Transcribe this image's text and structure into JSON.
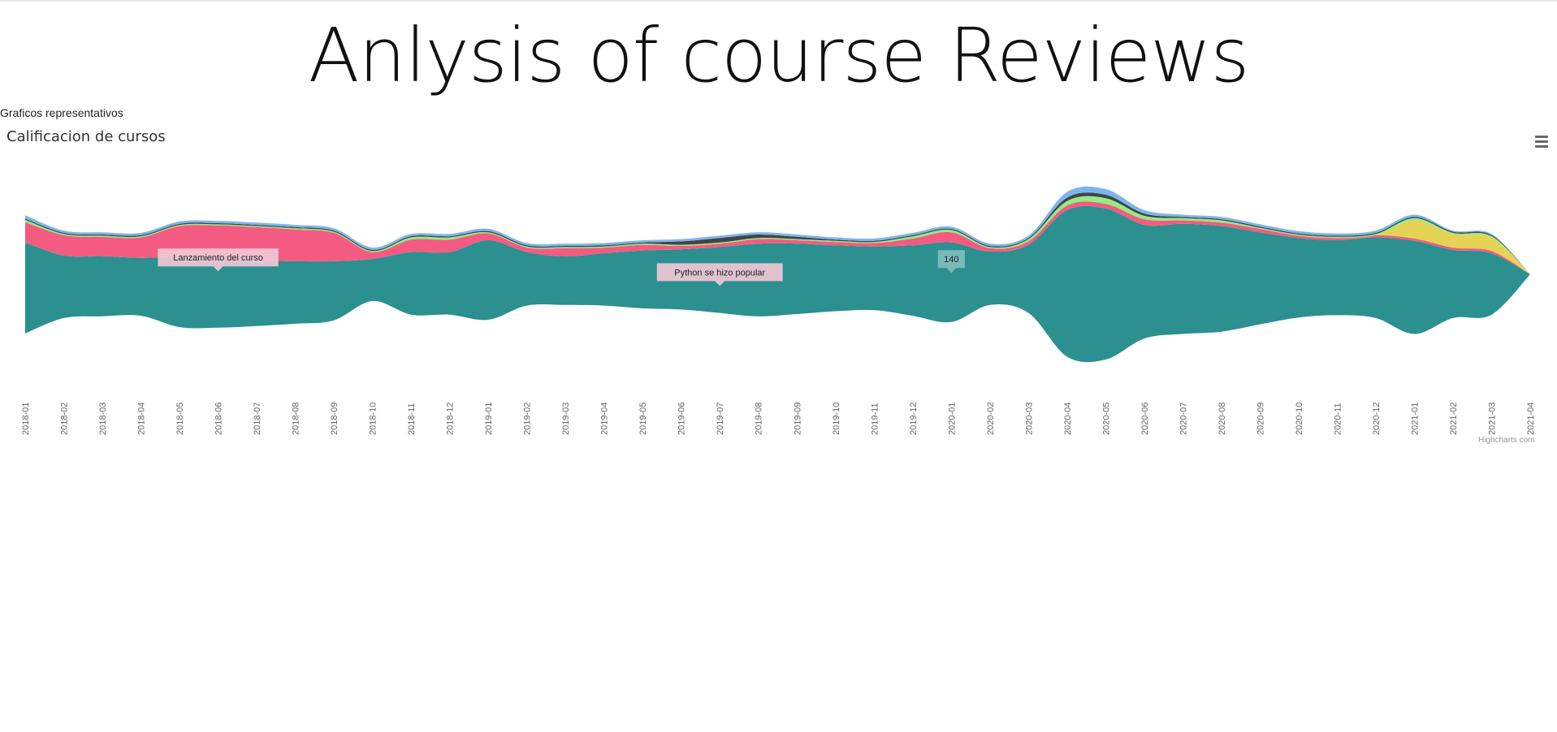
{
  "page": {
    "title": "Anlysis of course Reviews",
    "subtitle": "Graficos representativos"
  },
  "chart_menu_icon": "hamburger-menu-icon",
  "credit": "Highcharts.com",
  "chart_data": {
    "type": "area",
    "title": "Calificacion de cursos",
    "xlabel": "",
    "ylabel": "",
    "stacking": "streamgraph",
    "categories": [
      "2018-01",
      "2018-02",
      "2018-03",
      "2018-04",
      "2018-05",
      "2018-06",
      "2018-07",
      "2018-08",
      "2018-09",
      "2018-10",
      "2018-11",
      "2018-12",
      "2019-01",
      "2019-02",
      "2019-03",
      "2019-04",
      "2019-05",
      "2019-06",
      "2019-07",
      "2019-08",
      "2019-09",
      "2019-10",
      "2019-11",
      "2019-12",
      "2020-01",
      "2020-02",
      "2020-03",
      "2020-04",
      "2020-05",
      "2020-06",
      "2020-07",
      "2020-08",
      "2020-09",
      "2020-10",
      "2020-11",
      "2020-12",
      "2021-01",
      "2021-02",
      "2021-03",
      "2021-04"
    ],
    "series": [
      {
        "color": "#2b908f",
        "values": [
          80,
          55,
          53,
          51,
          62,
          62,
          58,
          55,
          52,
          37,
          55,
          55,
          70,
          47,
          43,
          46,
          51,
          53,
          58,
          64,
          62,
          58,
          56,
          62,
          70,
          47,
          60,
          129,
          133,
          100,
          97,
          93,
          81,
          70,
          66,
          71,
          82,
          60,
          54,
          0
        ]
      },
      {
        "color": "#f45b82",
        "values": [
          18,
          18,
          17,
          18,
          27,
          28,
          29,
          28,
          25,
          6,
          11,
          11,
          6,
          4,
          7,
          5,
          5,
          3,
          3,
          4,
          3,
          3,
          3,
          6,
          9,
          3,
          3,
          4,
          4,
          5,
          3,
          3,
          3,
          2,
          2,
          2,
          2,
          2,
          2,
          0
        ]
      },
      {
        "color": "#e4d354",
        "values": [
          0,
          0,
          0,
          0,
          0,
          0,
          0,
          0,
          0,
          0,
          0,
          0,
          0,
          0,
          0,
          0,
          0,
          0,
          0,
          0,
          0,
          0,
          0,
          0,
          0,
          0,
          0,
          0,
          0,
          0,
          0,
          0,
          0,
          0,
          0,
          0,
          16,
          12,
          12,
          0
        ]
      },
      {
        "color": "#90ee7e",
        "values": [
          2,
          1,
          1,
          1,
          1,
          1,
          1,
          1,
          1,
          1,
          2,
          2,
          1,
          1,
          1,
          1,
          1,
          1,
          1,
          1,
          1,
          1,
          1,
          2,
          2,
          1,
          2,
          4,
          5,
          3,
          2,
          2,
          1,
          1,
          1,
          1,
          2,
          1,
          1,
          0
        ]
      },
      {
        "color": "#434348",
        "values": [
          1,
          1,
          1,
          1,
          1,
          1,
          1,
          1,
          1,
          1,
          1,
          1,
          1,
          1,
          1,
          1,
          1,
          3,
          4,
          3,
          2,
          1,
          1,
          1,
          1,
          1,
          1,
          3,
          3,
          2,
          1,
          1,
          1,
          1,
          1,
          1,
          1,
          1,
          1,
          0
        ]
      },
      {
        "color": "#7cb5ec",
        "values": [
          3,
          2,
          2,
          2,
          2,
          2,
          2,
          2,
          2,
          2,
          2,
          2,
          2,
          2,
          2,
          2,
          2,
          2,
          2,
          2,
          2,
          2,
          2,
          2,
          2,
          2,
          2,
          5,
          5,
          3,
          2,
          2,
          2,
          2,
          2,
          2,
          2,
          1,
          1,
          0
        ]
      }
    ],
    "annotations": [
      {
        "text": "Lanzamiento del curso",
        "category": "2018-06"
      },
      {
        "text": "Python se hizo popular",
        "category": "2019-07"
      },
      {
        "text": "140",
        "category": "2020-01"
      }
    ],
    "legend": "none",
    "grid": false
  }
}
